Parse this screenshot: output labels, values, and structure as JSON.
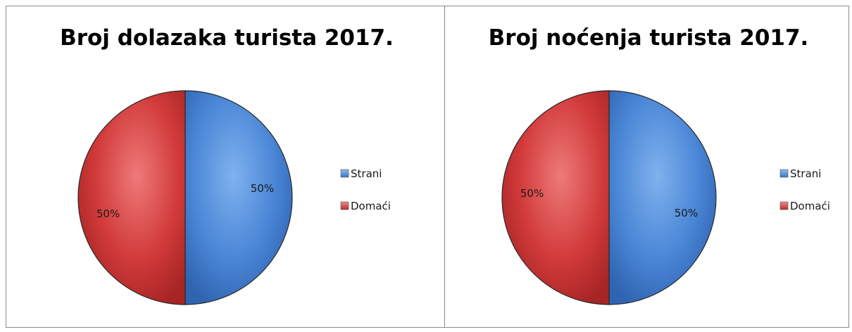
{
  "colors": {
    "strani": "#4a86d6",
    "domaci": "#d23a3a",
    "edge": "#2a2a2a"
  },
  "chart_data": [
    {
      "type": "pie",
      "title": "Broj dolazaka turista 2017.",
      "categories": [
        "Strani",
        "Domaći"
      ],
      "values": [
        50,
        50
      ],
      "data_labels": [
        "50%",
        "50%"
      ],
      "legend": [
        "Strani",
        "Domaći"
      ],
      "legend_position": "right"
    },
    {
      "type": "pie",
      "title": "Broj noćenja turista 2017.",
      "categories": [
        "Strani",
        "Domaći"
      ],
      "values": [
        50,
        50
      ],
      "data_labels": [
        "50%",
        "50%"
      ],
      "legend": [
        "Strani",
        "Domaći"
      ],
      "legend_position": "right"
    }
  ]
}
